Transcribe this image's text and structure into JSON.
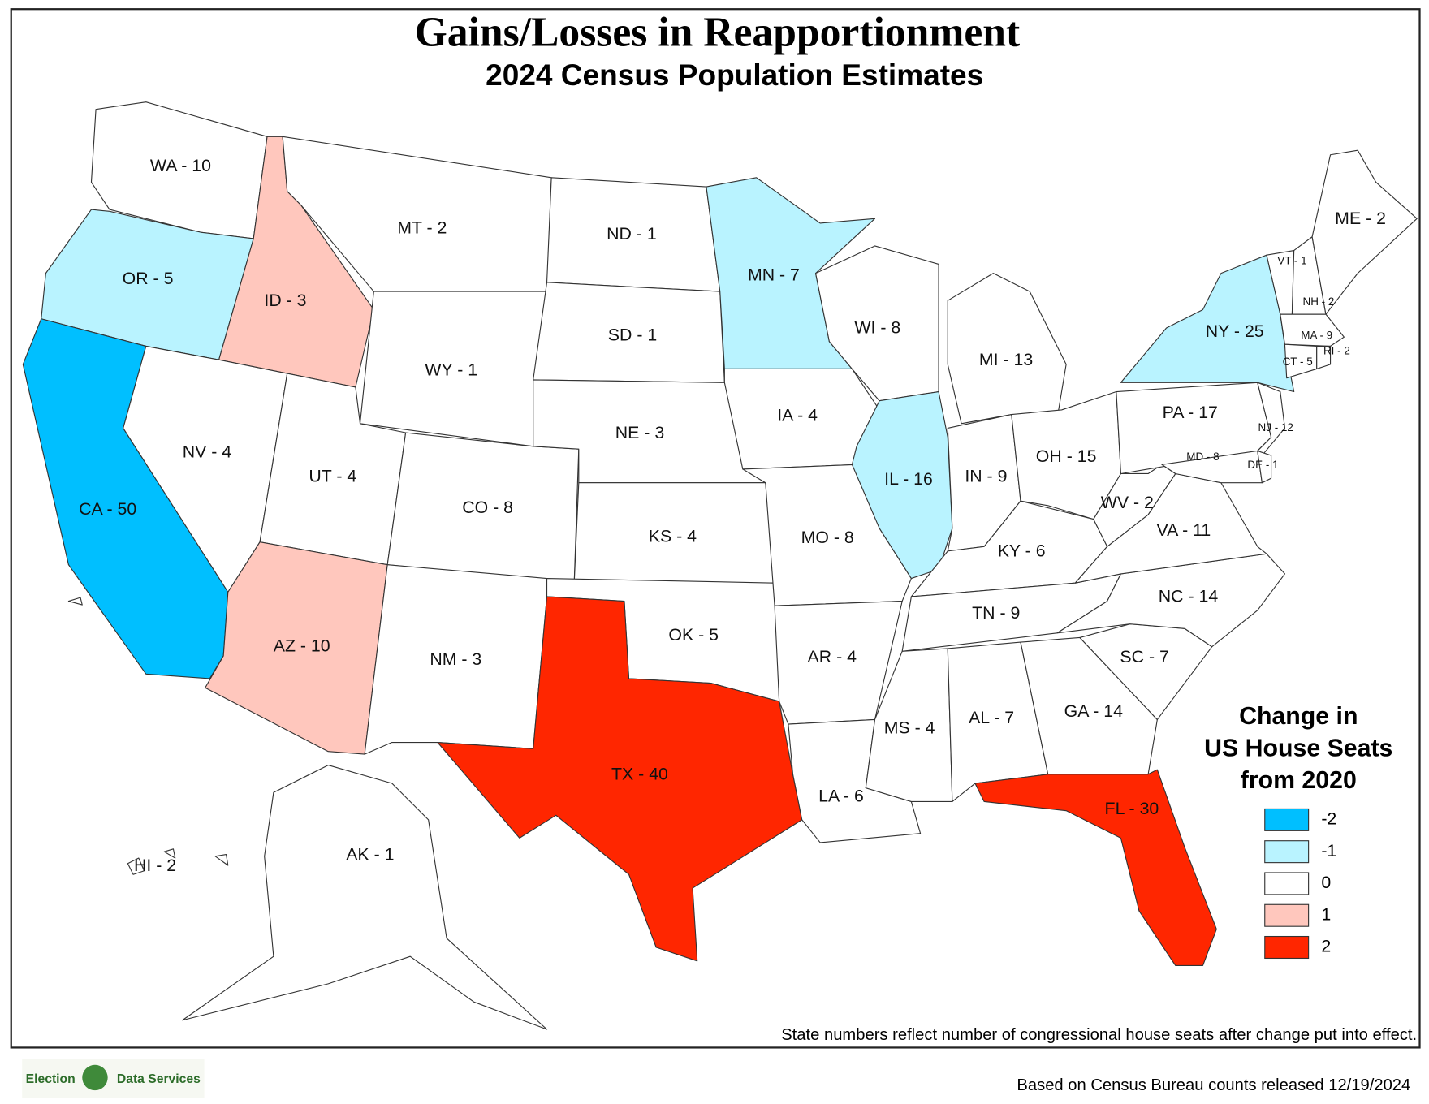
{
  "title": "Gains/Losses in Reapportionment",
  "subtitle": "2024 Census Population Estimates",
  "states": [
    {
      "label": "WA - 10",
      "change": 0
    },
    {
      "label": "OR - 5",
      "change": -1
    },
    {
      "label": "CA - 50",
      "change": -2
    },
    {
      "label": "ID - 3",
      "change": 1
    },
    {
      "label": "NV - 4",
      "change": 0
    },
    {
      "label": "MT - 2",
      "change": 0
    },
    {
      "label": "WY - 1",
      "change": 0
    },
    {
      "label": "UT - 4",
      "change": 0
    },
    {
      "label": "AZ - 10",
      "change": 1
    },
    {
      "label": "CO - 8",
      "change": 0
    },
    {
      "label": "NM - 3",
      "change": 0
    },
    {
      "label": "ND - 1",
      "change": 0
    },
    {
      "label": "SD - 1",
      "change": 0
    },
    {
      "label": "NE - 3",
      "change": 0
    },
    {
      "label": "KS - 4",
      "change": 0
    },
    {
      "label": "OK - 5",
      "change": 0
    },
    {
      "label": "TX - 40",
      "change": 2
    },
    {
      "label": "MN - 7",
      "change": -1
    },
    {
      "label": "IA - 4",
      "change": 0
    },
    {
      "label": "MO - 8",
      "change": 0
    },
    {
      "label": "AR - 4",
      "change": 0
    },
    {
      "label": "LA - 6",
      "change": 0
    },
    {
      "label": "WI - 8",
      "change": 0
    },
    {
      "label": "IL - 16",
      "change": -1
    },
    {
      "label": "MI - 13",
      "change": 0
    },
    {
      "label": "IN - 9",
      "change": 0
    },
    {
      "label": "OH - 15",
      "change": 0
    },
    {
      "label": "KY - 6",
      "change": 0
    },
    {
      "label": "TN - 9",
      "change": 0
    },
    {
      "label": "MS - 4",
      "change": 0
    },
    {
      "label": "AL - 7",
      "change": 0
    },
    {
      "label": "GA - 14",
      "change": 0
    },
    {
      "label": "FL - 30",
      "change": 2
    },
    {
      "label": "SC - 7",
      "change": 0
    },
    {
      "label": "NC - 14",
      "change": 0
    },
    {
      "label": "VA - 11",
      "change": 0
    },
    {
      "label": "WV - 2",
      "change": 0
    },
    {
      "label": "PA - 17",
      "change": 0
    },
    {
      "label": "NY - 25",
      "change": -1
    },
    {
      "label": "NJ - 12",
      "change": 0
    },
    {
      "label": "MD - 8",
      "change": 0
    },
    {
      "label": "DE - 1",
      "change": 0
    },
    {
      "label": "VT - 1",
      "change": 0
    },
    {
      "label": "NH - 2",
      "change": 0
    },
    {
      "label": "ME - 2",
      "change": 0
    },
    {
      "label": "MA - 9",
      "change": 0
    },
    {
      "label": "CT - 5",
      "change": 0
    },
    {
      "label": "RI - 2",
      "change": 0
    },
    {
      "label": "AK - 1",
      "change": 0
    },
    {
      "label": "HI - 2",
      "change": 0
    }
  ],
  "legend": {
    "title_lines": [
      "Change in",
      "US House Seats",
      "from 2020"
    ],
    "items": [
      {
        "value": -2,
        "color": "#00bfff"
      },
      {
        "value": -1,
        "color": "#b9f3ff"
      },
      {
        "value": 0,
        "color": "#ffffff"
      },
      {
        "value": 1,
        "color": "#ffc7bd"
      },
      {
        "value": 2,
        "color": "#ff2600"
      }
    ]
  },
  "note": "State numbers reflect number of congressional house seats after change put into effect.",
  "logo": {
    "left": "Election",
    "right": "Data Services"
  },
  "footer": "Based on Census Bureau counts released 12/19/2024"
}
